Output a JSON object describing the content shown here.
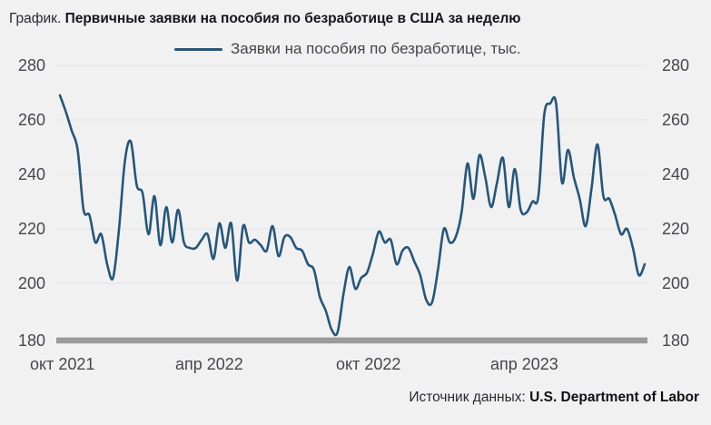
{
  "title": {
    "prefix": "График.",
    "main": "Первичные заявки на пособия по безработице в США за неделю"
  },
  "legend": {
    "label": "Заявки на пособия по безработице, тыс."
  },
  "source": {
    "prefix": "Источник данных:",
    "main": "U.S. Department of Labor"
  },
  "colors": {
    "line": "#25567b",
    "background": "#f1f1f2",
    "gridline": "#e8e8ea",
    "axis_bar": "#9b9b9b",
    "tick_text": "#47474a"
  },
  "chart_data": {
    "type": "line",
    "title": "Первичные заявки на пособия по безработице в США за неделю",
    "series": [
      {
        "name": "Заявки на пособия по безработице, тыс.",
        "frequency": "weekly",
        "values": [
          269,
          263,
          256,
          249,
          227,
          225,
          215,
          218,
          207,
          202,
          220,
          245,
          252,
          236,
          233,
          218,
          232,
          214,
          228,
          215,
          227,
          215,
          213,
          213,
          216,
          218,
          209,
          222,
          213,
          222,
          201,
          221,
          215,
          216,
          214,
          212,
          221,
          210,
          217,
          217,
          213,
          212,
          207,
          205,
          195,
          190,
          183,
          182,
          196,
          206,
          198,
          202,
          204,
          211,
          219,
          215,
          216,
          207,
          212,
          213,
          208,
          203,
          194,
          193,
          205,
          220,
          215,
          217,
          226,
          244,
          231,
          247,
          239,
          228,
          237,
          246,
          228,
          242,
          227,
          226,
          230,
          232,
          262,
          266,
          266,
          237,
          249,
          239,
          231,
          221,
          235,
          251,
          232,
          231,
          225,
          218,
          220,
          213,
          203,
          207
        ]
      }
    ],
    "x_tick_labels": [
      "окт 2021",
      "апр 2022",
      "окт 2022",
      "апр 2023"
    ],
    "y_ticks": [
      180,
      200,
      220,
      240,
      260,
      280
    ],
    "ylim": [
      180,
      280
    ],
    "xlabel": "",
    "ylabel": "",
    "grid": "horizontal",
    "legend_position": "top-center"
  }
}
